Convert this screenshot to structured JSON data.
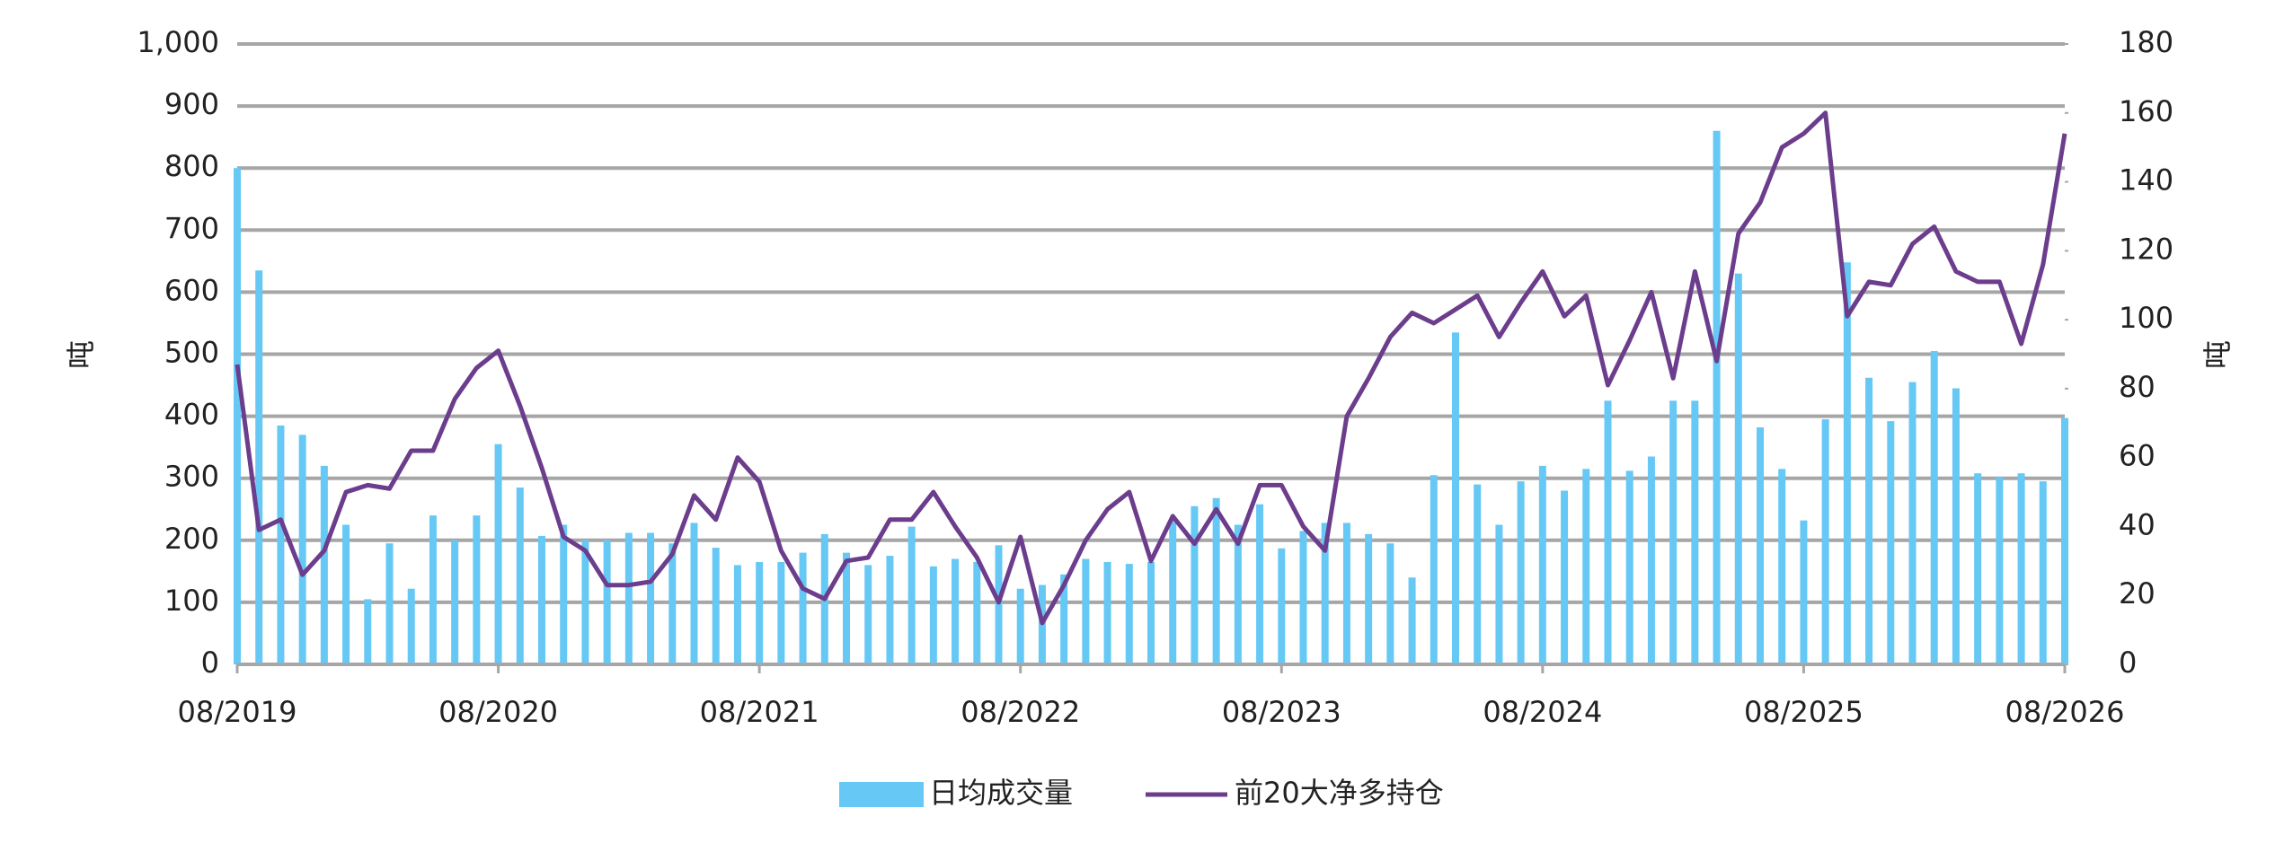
{
  "chart_data": {
    "type": "combo",
    "categories": [
      "08/2019",
      null,
      null,
      null,
      null,
      null,
      null,
      null,
      null,
      null,
      null,
      null,
      "08/2020",
      null,
      null,
      null,
      null,
      null,
      null,
      null,
      null,
      null,
      null,
      null,
      "08/2021",
      null,
      null,
      null,
      null,
      null,
      null,
      null,
      null,
      null,
      null,
      null,
      "08/2022",
      null,
      null,
      null,
      null,
      null,
      null,
      null,
      null,
      null,
      null,
      null,
      "08/2023",
      null,
      null,
      null,
      null,
      null,
      null,
      null,
      null,
      null,
      null,
      null,
      "08/2024",
      null,
      null,
      null,
      null,
      null,
      null,
      null,
      null,
      null,
      null,
      null,
      "08/2025",
      null,
      null,
      null,
      null,
      null,
      null,
      null,
      null,
      null,
      null,
      null,
      "08/2026"
    ],
    "series": [
      {
        "name": "日均成交量",
        "type": "bar",
        "color": "#66c8f5",
        "values": [
          800,
          635,
          385,
          370,
          320,
          225,
          105,
          195,
          122,
          240,
          200,
          240,
          355,
          285,
          207,
          225,
          200,
          200,
          212,
          212,
          195,
          228,
          188,
          160,
          165,
          165,
          180,
          210,
          180,
          160,
          175,
          222,
          158,
          170,
          165,
          192,
          122,
          128,
          145,
          170,
          165,
          162,
          165,
          235,
          255,
          268,
          225,
          258,
          187,
          215,
          228,
          228,
          210,
          195,
          140,
          305,
          535,
          290,
          225,
          295,
          320,
          280,
          315,
          425,
          312,
          335,
          425,
          425,
          860,
          630,
          382,
          315,
          232,
          395,
          648,
          462,
          392,
          455,
          505,
          445,
          308,
          302,
          308,
          295,
          397
        ]
      },
      {
        "name": "前20大净多持仓",
        "type": "line",
        "color": "#6b3d8c",
        "axis": "y2",
        "values": [
          87,
          39,
          42,
          26,
          33,
          50,
          52,
          51,
          62,
          62,
          77,
          86,
          91,
          75,
          57,
          37,
          33,
          23,
          23,
          24,
          32,
          49,
          42,
          60,
          53,
          33,
          22,
          19,
          30,
          31,
          42,
          42,
          50,
          40,
          31,
          18,
          37,
          12,
          23,
          36,
          45,
          50,
          30,
          43,
          35,
          45,
          35,
          52,
          52,
          40,
          33,
          72,
          83,
          95,
          102,
          99,
          103,
          107,
          95,
          105,
          114,
          101,
          107,
          81,
          94,
          108,
          83,
          114,
          88,
          125,
          134,
          150,
          154,
          160,
          101,
          111,
          110,
          122,
          127,
          114,
          111,
          111,
          93,
          116,
          154
        ]
      }
    ],
    "ylabel": "吨",
    "y2label": "吨",
    "ylim": [
      0,
      1000
    ],
    "yticks": [
      0,
      100,
      200,
      300,
      400,
      500,
      600,
      700,
      800,
      900,
      {
        "value": 1000,
        "label": "1,000"
      }
    ],
    "y2lim": [
      0,
      180
    ],
    "y2ticks": [
      0,
      20,
      40,
      60,
      80,
      100,
      120,
      140,
      160,
      180
    ],
    "grid": true,
    "legend": "bottom"
  }
}
